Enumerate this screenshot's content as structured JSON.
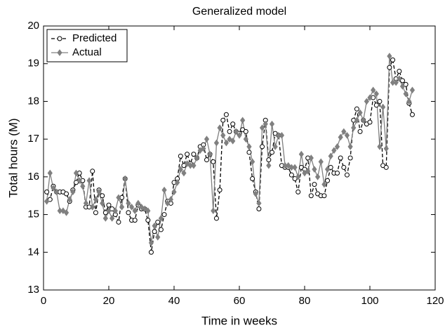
{
  "chart_data": {
    "type": "line",
    "title": "Generalized model",
    "xlabel": "Time in weeks",
    "ylabel": "Total hours (M)",
    "x": [
      1,
      2,
      3,
      4,
      5,
      6,
      7,
      8,
      9,
      10,
      11,
      12,
      13,
      14,
      15,
      16,
      17,
      18,
      19,
      20,
      21,
      22,
      23,
      24,
      25,
      26,
      27,
      28,
      29,
      30,
      31,
      32,
      33,
      34,
      35,
      36,
      37,
      38,
      39,
      40,
      41,
      42,
      43,
      44,
      45,
      46,
      47,
      48,
      49,
      50,
      51,
      52,
      53,
      54,
      55,
      56,
      57,
      58,
      59,
      60,
      61,
      62,
      63,
      64,
      65,
      66,
      67,
      68,
      69,
      70,
      71,
      72,
      73,
      74,
      75,
      76,
      77,
      78,
      79,
      80,
      81,
      82,
      83,
      84,
      85,
      86,
      87,
      88,
      89,
      90,
      91,
      92,
      93,
      94,
      95,
      96,
      97,
      98,
      99,
      100,
      101,
      102,
      103,
      104,
      105,
      106,
      107,
      108,
      109,
      110,
      111,
      112,
      113
    ],
    "series": [
      {
        "name": "Predicted",
        "color": "#000000",
        "marker": "circle",
        "dash": true,
        "values": [
          15.6,
          15.4,
          15.75,
          15.6,
          15.6,
          15.6,
          15.55,
          15.35,
          15.65,
          15.85,
          16.1,
          15.9,
          15.2,
          15.2,
          16.15,
          15.05,
          15.65,
          15.5,
          15.05,
          15.25,
          15.15,
          15.0,
          14.8,
          15.45,
          15.95,
          15.05,
          14.85,
          14.85,
          15.25,
          15.15,
          15.15,
          14.85,
          14.0,
          14.55,
          14.8,
          14.6,
          15.0,
          15.35,
          15.3,
          15.85,
          15.95,
          16.55,
          16.3,
          16.6,
          16.35,
          16.6,
          16.5,
          16.8,
          16.85,
          16.45,
          16.6,
          16.4,
          14.9,
          15.65,
          17.5,
          17.65,
          17.2,
          17.4,
          17.2,
          17.15,
          17.25,
          17.2,
          16.65,
          15.95,
          15.6,
          15.15,
          16.8,
          17.5,
          16.45,
          16.65,
          17.15,
          17.1,
          16.3,
          16.25,
          16.25,
          16.05,
          15.95,
          15.6,
          16.25,
          16.2,
          16.5,
          15.5,
          15.8,
          15.55,
          15.5,
          15.5,
          15.9,
          16.25,
          16.1,
          16.1,
          16.5,
          16.25,
          16.05,
          16.5,
          17.5,
          17.8,
          17.2,
          17.5,
          17.4,
          17.45,
          18.1,
          17.9,
          18.0,
          16.3,
          16.25,
          18.9,
          19.1,
          18.6,
          18.8,
          18.55,
          18.45,
          17.95,
          17.65
        ]
      },
      {
        "name": "Actual",
        "color": "#808080",
        "marker": "diamond",
        "dash": false,
        "values": [
          15.35,
          16.1,
          15.7,
          15.6,
          15.1,
          15.1,
          15.05,
          15.4,
          15.6,
          16.1,
          15.9,
          15.75,
          15.3,
          15.9,
          15.2,
          15.4,
          15.6,
          15.3,
          14.9,
          15.1,
          14.9,
          15.1,
          15.45,
          15.2,
          15.95,
          15.3,
          15.2,
          15.1,
          15.3,
          15.2,
          15.15,
          15.1,
          14.25,
          14.7,
          14.4,
          14.9,
          15.65,
          15.3,
          15.4,
          15.6,
          15.85,
          16.2,
          16.1,
          16.35,
          16.3,
          16.3,
          16.5,
          16.7,
          16.75,
          17.0,
          16.6,
          15.1,
          16.9,
          17.3,
          17.1,
          16.9,
          17.0,
          16.95,
          17.2,
          17.1,
          17.5,
          17.0,
          16.8,
          16.4,
          15.55,
          15.3,
          17.3,
          17.4,
          16.3,
          17.4,
          16.8,
          17.1,
          17.1,
          16.3,
          16.3,
          16.25,
          16.25,
          16.0,
          16.6,
          16.1,
          16.15,
          16.5,
          16.2,
          16.0,
          16.4,
          15.8,
          16.2,
          16.55,
          16.7,
          16.8,
          17.05,
          17.2,
          17.1,
          16.8,
          17.3,
          17.5,
          17.7,
          17.5,
          18.0,
          18.1,
          18.3,
          18.2,
          16.8,
          17.85,
          16.75,
          19.2,
          18.5,
          18.5,
          18.6,
          18.4,
          18.2,
          18.0,
          18.3
        ]
      }
    ],
    "xlim": [
      0,
      120
    ],
    "xticks": [
      0,
      20,
      40,
      60,
      80,
      100,
      120
    ],
    "ylim": [
      13,
      20
    ],
    "yticks": [
      13,
      14,
      15,
      16,
      17,
      18,
      19,
      20
    ],
    "legend": "upper left",
    "grid": false
  }
}
